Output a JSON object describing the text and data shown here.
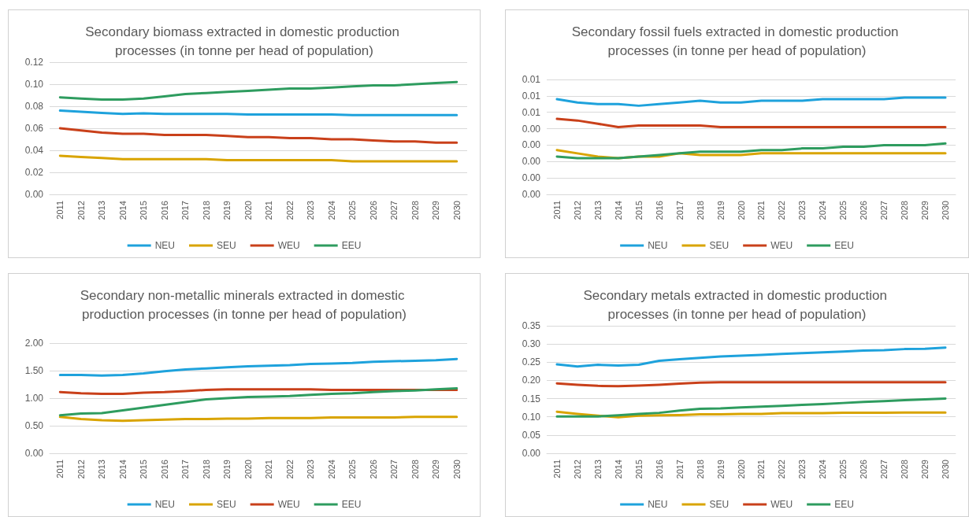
{
  "chart_data": [
    {
      "type": "line",
      "title": "Secondary biomass extracted in domestic production processes (in tonne per head of population)",
      "categories": [
        "2011",
        "2012",
        "2013",
        "2014",
        "2015",
        "2016",
        "2017",
        "2018",
        "2019",
        "2020",
        "2021",
        "2022",
        "2023",
        "2024",
        "2025",
        "2026",
        "2027",
        "2028",
        "2029",
        "2030"
      ],
      "ylim": [
        0,
        0.12
      ],
      "yticks": [
        {
          "value": 0,
          "label": "0.00"
        },
        {
          "value": 0.02,
          "label": "0.02"
        },
        {
          "value": 0.04,
          "label": "0.04"
        },
        {
          "value": 0.06,
          "label": "0.06"
        },
        {
          "value": 0.08,
          "label": "0.08"
        },
        {
          "value": 0.1,
          "label": "0.10"
        },
        {
          "value": 0.12,
          "label": "0.12"
        }
      ],
      "grid": "y",
      "legend": "bottom",
      "marker": "none",
      "line_style": "solid",
      "series": [
        {
          "name": "NEU",
          "color": "#1ea2dc",
          "values": [
            0.076,
            0.075,
            0.074,
            0.073,
            0.0735,
            0.073,
            0.073,
            0.073,
            0.073,
            0.0725,
            0.0725,
            0.0725,
            0.0725,
            0.0725,
            0.072,
            0.072,
            0.072,
            0.072,
            0.072,
            0.072
          ]
        },
        {
          "name": "SEU",
          "color": "#d9a400",
          "values": [
            0.035,
            0.034,
            0.033,
            0.032,
            0.032,
            0.032,
            0.032,
            0.032,
            0.031,
            0.031,
            0.031,
            0.031,
            0.031,
            0.031,
            0.03,
            0.03,
            0.03,
            0.03,
            0.03,
            0.03
          ]
        },
        {
          "name": "WEU",
          "color": "#c9401a",
          "values": [
            0.06,
            0.058,
            0.056,
            0.055,
            0.055,
            0.054,
            0.054,
            0.054,
            0.053,
            0.052,
            0.052,
            0.051,
            0.051,
            0.05,
            0.05,
            0.049,
            0.048,
            0.048,
            0.047,
            0.047
          ]
        },
        {
          "name": "EEU",
          "color": "#2e9c5f",
          "values": [
            0.088,
            0.087,
            0.086,
            0.086,
            0.087,
            0.089,
            0.091,
            0.092,
            0.093,
            0.094,
            0.095,
            0.096,
            0.096,
            0.097,
            0.098,
            0.099,
            0.099,
            0.1,
            0.101,
            0.102
          ]
        }
      ]
    },
    {
      "type": "line",
      "title": "Secondary fossil fuels extracted in domestic production processes (in tonne per head of population)",
      "categories": [
        "2011",
        "2012",
        "2013",
        "2014",
        "2015",
        "2016",
        "2017",
        "2018",
        "2019",
        "2020",
        "2021",
        "2022",
        "2023",
        "2024",
        "2025",
        "2026",
        "2027",
        "2028",
        "2029",
        "2030"
      ],
      "ylim": [
        0,
        0.007
      ],
      "yticks": [
        {
          "value": 0,
          "label": "0.00"
        },
        {
          "value": 0.001,
          "label": "0.00"
        },
        {
          "value": 0.002,
          "label": "0.00"
        },
        {
          "value": 0.003,
          "label": "0.00"
        },
        {
          "value": 0.004,
          "label": "0.00"
        },
        {
          "value": 0.005,
          "label": "0.01"
        },
        {
          "value": 0.006,
          "label": "0.01"
        },
        {
          "value": 0.007,
          "label": "0.01"
        }
      ],
      "grid": "y",
      "legend": "bottom",
      "marker": "none",
      "line_style": "solid",
      "series": [
        {
          "name": "NEU",
          "color": "#1ea2dc",
          "values": [
            0.0058,
            0.0056,
            0.0055,
            0.0055,
            0.0054,
            0.0055,
            0.0056,
            0.0057,
            0.0056,
            0.0056,
            0.0057,
            0.0057,
            0.0057,
            0.0058,
            0.0058,
            0.0058,
            0.0058,
            0.0059,
            0.0059,
            0.0059
          ]
        },
        {
          "name": "SEU",
          "color": "#d9a400",
          "values": [
            0.0027,
            0.0025,
            0.0023,
            0.0022,
            0.0023,
            0.0023,
            0.0025,
            0.0024,
            0.0024,
            0.0024,
            0.0025,
            0.0025,
            0.0025,
            0.0025,
            0.0025,
            0.0025,
            0.0025,
            0.0025,
            0.0025,
            0.0025
          ]
        },
        {
          "name": "WEU",
          "color": "#c9401a",
          "values": [
            0.0046,
            0.0045,
            0.0043,
            0.0041,
            0.0042,
            0.0042,
            0.0042,
            0.0042,
            0.0041,
            0.0041,
            0.0041,
            0.0041,
            0.0041,
            0.0041,
            0.0041,
            0.0041,
            0.0041,
            0.0041,
            0.0041,
            0.0041
          ]
        },
        {
          "name": "EEU",
          "color": "#2e9c5f",
          "values": [
            0.0023,
            0.0022,
            0.0022,
            0.0022,
            0.0023,
            0.0024,
            0.0025,
            0.0026,
            0.0026,
            0.0026,
            0.0027,
            0.0027,
            0.0028,
            0.0028,
            0.0029,
            0.0029,
            0.003,
            0.003,
            0.003,
            0.0031
          ]
        }
      ]
    },
    {
      "type": "line",
      "title": "Secondary non-metallic minerals extracted in domestic production processes (in tonne per head of population)",
      "categories": [
        "2011",
        "2012",
        "2013",
        "2014",
        "2015",
        "2016",
        "2017",
        "2018",
        "2019",
        "2020",
        "2021",
        "2022",
        "2023",
        "2024",
        "2025",
        "2026",
        "2027",
        "2028",
        "2029",
        "2030"
      ],
      "ylim": [
        0,
        2
      ],
      "yticks": [
        {
          "value": 0,
          "label": "0.00"
        },
        {
          "value": 0.5,
          "label": "0.50"
        },
        {
          "value": 1,
          "label": "1.00"
        },
        {
          "value": 1.5,
          "label": "1.50"
        },
        {
          "value": 2,
          "label": "2.00"
        }
      ],
      "grid": "y",
      "legend": "bottom",
      "marker": "none",
      "line_style": "solid",
      "series": [
        {
          "name": "NEU",
          "color": "#1ea2dc",
          "values": [
            1.42,
            1.42,
            1.41,
            1.42,
            1.45,
            1.49,
            1.52,
            1.54,
            1.56,
            1.58,
            1.59,
            1.6,
            1.62,
            1.63,
            1.64,
            1.66,
            1.67,
            1.68,
            1.69,
            1.71
          ]
        },
        {
          "name": "SEU",
          "color": "#d9a400",
          "values": [
            0.66,
            0.62,
            0.6,
            0.59,
            0.6,
            0.61,
            0.62,
            0.62,
            0.63,
            0.63,
            0.64,
            0.64,
            0.64,
            0.65,
            0.65,
            0.65,
            0.65,
            0.66,
            0.66,
            0.66
          ]
        },
        {
          "name": "WEU",
          "color": "#c9401a",
          "values": [
            1.11,
            1.09,
            1.08,
            1.08,
            1.1,
            1.11,
            1.13,
            1.15,
            1.16,
            1.16,
            1.16,
            1.16,
            1.16,
            1.15,
            1.15,
            1.15,
            1.15,
            1.15,
            1.15,
            1.15
          ]
        },
        {
          "name": "EEU",
          "color": "#2e9c5f",
          "values": [
            0.69,
            0.72,
            0.73,
            0.78,
            0.83,
            0.88,
            0.93,
            0.98,
            1.0,
            1.02,
            1.03,
            1.04,
            1.06,
            1.08,
            1.09,
            1.11,
            1.13,
            1.14,
            1.16,
            1.18
          ]
        }
      ]
    },
    {
      "type": "line",
      "title": "Secondary metals extracted in domestic production processes (in tonne per head of population)",
      "categories": [
        "2011",
        "2012",
        "2013",
        "2014",
        "2015",
        "2016",
        "2017",
        "2018",
        "2019",
        "2020",
        "2021",
        "2022",
        "2023",
        "2024",
        "2025",
        "2026",
        "2027",
        "2028",
        "2029",
        "2030"
      ],
      "ylim": [
        0,
        0.35
      ],
      "yticks": [
        {
          "value": 0,
          "label": "0.00"
        },
        {
          "value": 0.05,
          "label": "0.05"
        },
        {
          "value": 0.1,
          "label": "0.10"
        },
        {
          "value": 0.15,
          "label": "0.15"
        },
        {
          "value": 0.2,
          "label": "0.20"
        },
        {
          "value": 0.25,
          "label": "0.25"
        },
        {
          "value": 0.3,
          "label": "0.30"
        },
        {
          "value": 0.35,
          "label": "0.35"
        }
      ],
      "grid": "y",
      "legend": "bottom",
      "marker": "none",
      "line_style": "solid",
      "series": [
        {
          "name": "NEU",
          "color": "#1ea2dc",
          "values": [
            0.244,
            0.238,
            0.243,
            0.241,
            0.243,
            0.254,
            0.258,
            0.262,
            0.266,
            0.268,
            0.27,
            0.273,
            0.275,
            0.277,
            0.279,
            0.282,
            0.283,
            0.286,
            0.287,
            0.29
          ]
        },
        {
          "name": "SEU",
          "color": "#d9a400",
          "values": [
            0.114,
            0.108,
            0.103,
            0.099,
            0.103,
            0.104,
            0.105,
            0.107,
            0.107,
            0.108,
            0.108,
            0.11,
            0.11,
            0.11,
            0.111,
            0.111,
            0.111,
            0.112,
            0.112,
            0.112
          ]
        },
        {
          "name": "WEU",
          "color": "#c9401a",
          "values": [
            0.192,
            0.188,
            0.185,
            0.184,
            0.186,
            0.188,
            0.191,
            0.194,
            0.195,
            0.195,
            0.195,
            0.195,
            0.195,
            0.195,
            0.195,
            0.195,
            0.195,
            0.195,
            0.195,
            0.195
          ]
        },
        {
          "name": "EEU",
          "color": "#2e9c5f",
          "values": [
            0.101,
            0.101,
            0.101,
            0.104,
            0.108,
            0.111,
            0.117,
            0.122,
            0.123,
            0.126,
            0.128,
            0.13,
            0.133,
            0.135,
            0.138,
            0.141,
            0.143,
            0.146,
            0.148,
            0.15
          ]
        }
      ]
    }
  ]
}
